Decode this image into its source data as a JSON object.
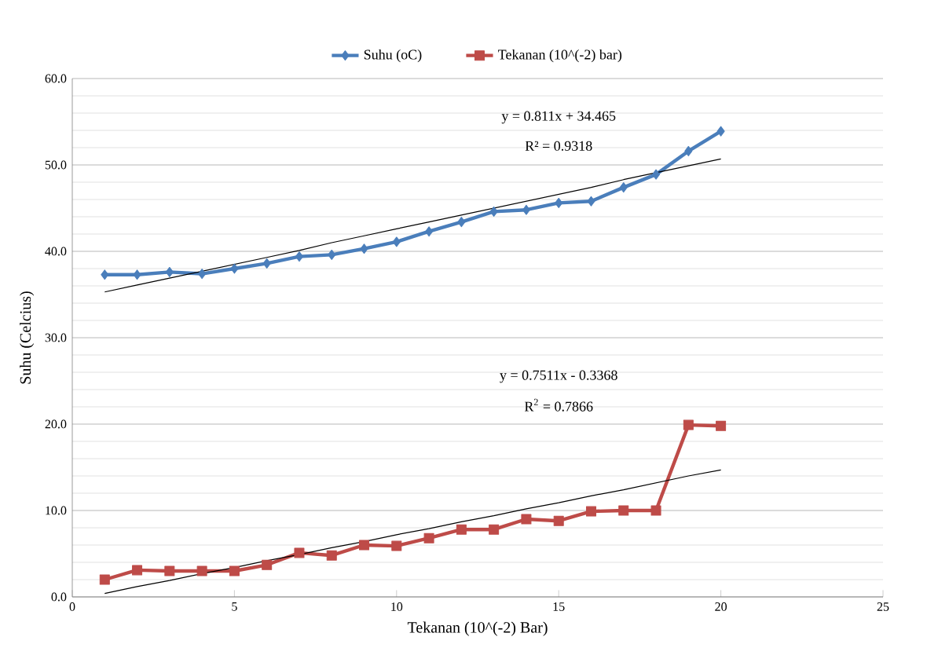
{
  "chart_data": {
    "type": "line",
    "xlabel": "Tekanan (10^(-2) Bar)",
    "ylabel": "Suhu (Celcius)",
    "x": [
      1,
      2,
      3,
      4,
      5,
      6,
      7,
      8,
      9,
      10,
      11,
      12,
      13,
      14,
      15,
      16,
      17,
      18,
      19,
      20
    ],
    "series": [
      {
        "name": "Suhu (oC)",
        "color": "#4a7ebb",
        "marker": "diamond",
        "values": [
          37.3,
          37.3,
          37.6,
          37.4,
          38.0,
          38.6,
          39.4,
          39.6,
          40.3,
          41.1,
          42.3,
          43.4,
          44.6,
          44.8,
          45.6,
          45.8,
          47.4,
          48.9,
          51.6,
          53.9
        ]
      },
      {
        "name": "Tekanan (10^(-2) bar)",
        "color": "#be4b48",
        "marker": "square",
        "values": [
          2.0,
          3.1,
          3.0,
          3.0,
          3.0,
          3.7,
          5.1,
          4.8,
          6.0,
          5.9,
          6.8,
          7.8,
          7.8,
          9.0,
          8.8,
          9.9,
          10.0,
          10.0,
          19.9,
          19.8
        ]
      },
      {
        "type": "line",
        "color": "#000000",
        "marker": "none",
        "values": [
          35.3,
          36.1,
          36.9,
          37.7,
          38.5,
          39.3,
          40.1,
          41.0,
          41.8,
          42.6,
          43.4,
          44.2,
          45.0,
          45.8,
          46.6,
          47.4,
          48.3,
          49.1,
          49.9,
          50.7
        ]
      },
      {
        "type": "line",
        "color": "#000000",
        "marker": "none",
        "values": [
          0.4,
          1.2,
          1.9,
          2.7,
          3.4,
          4.2,
          4.9,
          5.7,
          6.4,
          7.2,
          7.9,
          8.7,
          9.4,
          10.2,
          10.9,
          11.7,
          12.4,
          13.2,
          14.0,
          14.7
        ]
      }
    ],
    "annotations": [
      "y = 0.811x + 34.465",
      "R² = 0.9318",
      "y = 0.7511x - 0.3368",
      "R$^{2}$ = 0.7866"
    ],
    "xlim": [
      0,
      25
    ],
    "ylim": [
      0,
      60
    ],
    "xticks": [
      0,
      5,
      10,
      15,
      20,
      25
    ],
    "yticks": [
      {
        "value": 0,
        "label": "0.0"
      },
      {
        "value": 10,
        "label": "10.0"
      },
      {
        "value": 20,
        "label": "20.0"
      },
      {
        "value": 30,
        "label": "30.0"
      },
      {
        "value": 40,
        "label": "40.0"
      },
      {
        "value": 50,
        "label": "50.0"
      },
      {
        "value": 60,
        "label": "60.0"
      }
    ],
    "grid": "y",
    "legend": "top"
  }
}
